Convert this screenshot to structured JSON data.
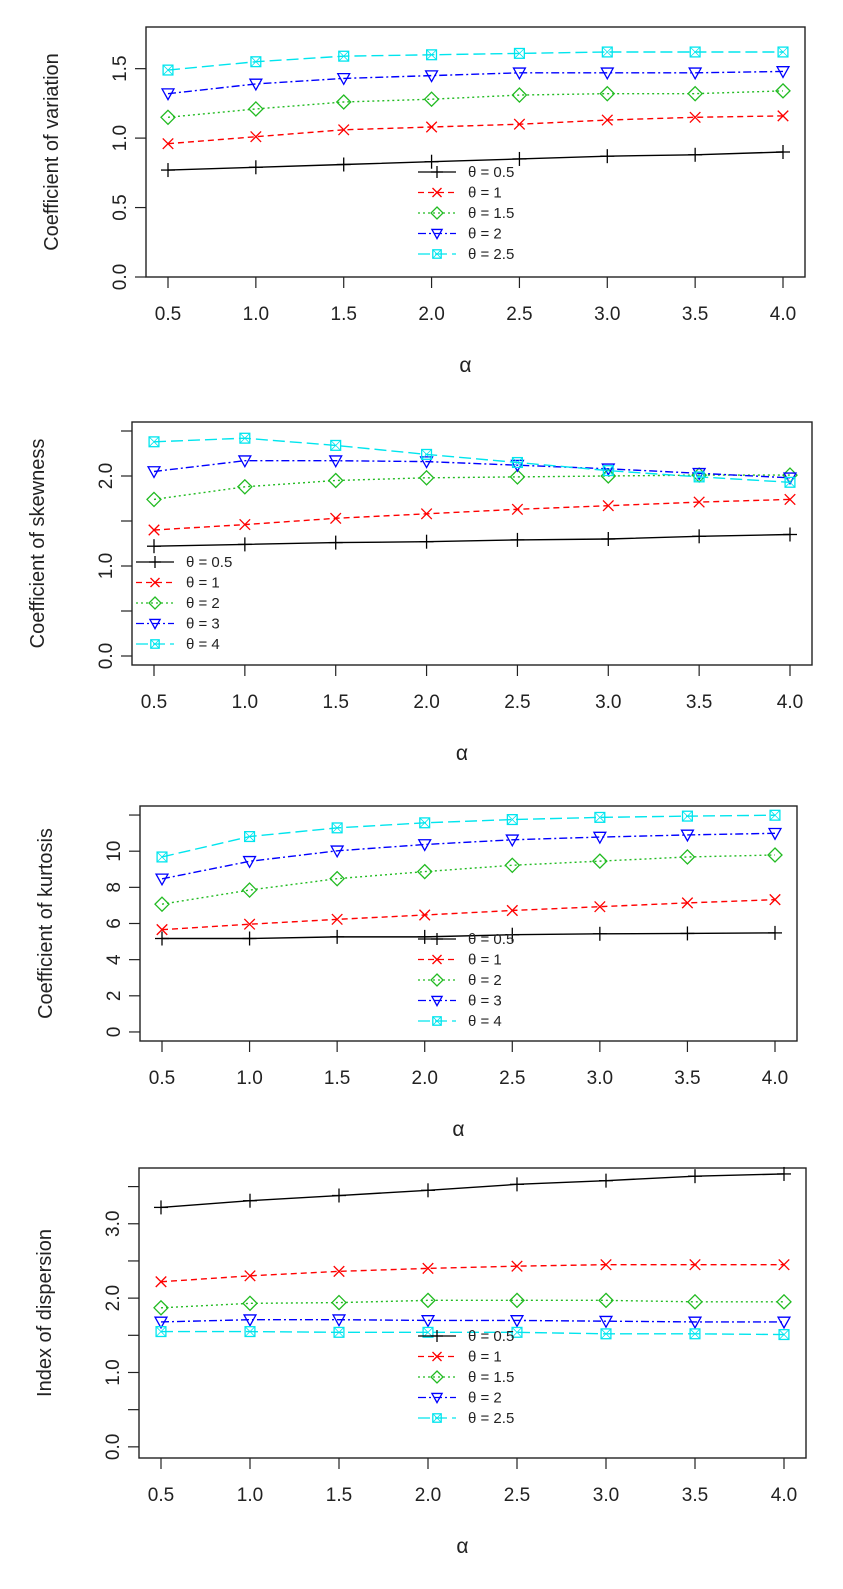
{
  "chart_data": [
    {
      "type": "line",
      "title": "",
      "xlabel": "α",
      "ylabel": "Coefficient of variation",
      "x": [
        0.5,
        1.0,
        1.5,
        2.0,
        2.5,
        3.0,
        3.5,
        4.0
      ],
      "x_tick_labels": [
        "0.5",
        "1.0",
        "1.5",
        "2.0",
        "2.5",
        "3.0",
        "3.5",
        "4.0"
      ],
      "y_ticks": [
        0.0,
        0.5,
        1.0,
        1.5
      ],
      "y_tick_labels": [
        "0.0",
        "0.5",
        "1.0",
        "1.5"
      ],
      "ylim": [
        0.0,
        1.8
      ],
      "grid": false,
      "legend_position": "bottom-center",
      "series": [
        {
          "name": "θ = 0.5",
          "color": "#000000",
          "marker": "plus",
          "dash": "solid",
          "values": [
            0.77,
            0.79,
            0.81,
            0.83,
            0.85,
            0.87,
            0.88,
            0.9
          ]
        },
        {
          "name": "θ = 1",
          "color": "#ff0000",
          "marker": "cross",
          "dash": "dashed",
          "values": [
            0.96,
            1.01,
            1.06,
            1.08,
            1.1,
            1.13,
            1.15,
            1.16
          ]
        },
        {
          "name": "θ = 1.5",
          "color": "#22bb22",
          "marker": "diamond",
          "dash": "dotted",
          "values": [
            1.15,
            1.21,
            1.26,
            1.28,
            1.31,
            1.32,
            1.32,
            1.34
          ]
        },
        {
          "name": "θ = 2",
          "color": "#0000ff",
          "marker": "triangle-down",
          "dash": "dotdash",
          "values": [
            1.32,
            1.39,
            1.43,
            1.45,
            1.47,
            1.47,
            1.47,
            1.48
          ]
        },
        {
          "name": "θ = 2.5",
          "color": "#00e5ee",
          "marker": "square-x",
          "dash": "longdash",
          "values": [
            1.49,
            1.55,
            1.59,
            1.6,
            1.61,
            1.62,
            1.62,
            1.62
          ]
        }
      ]
    },
    {
      "type": "line",
      "title": "",
      "xlabel": "α",
      "ylabel": "Coefficient of skewness",
      "x": [
        0.5,
        1.0,
        1.5,
        2.0,
        2.5,
        3.0,
        3.5,
        4.0
      ],
      "x_tick_labels": [
        "0.5",
        "1.0",
        "1.5",
        "2.0",
        "2.5",
        "3.0",
        "3.5",
        "4.0"
      ],
      "y_ticks": [
        0.0,
        0.5,
        1.0,
        1.5,
        2.0,
        2.5
      ],
      "y_tick_labels": [
        "0.0",
        "",
        "1.0",
        "",
        "2.0",
        ""
      ],
      "ylim": [
        -0.1,
        2.6
      ],
      "grid": false,
      "legend_position": "bottom-left",
      "series": [
        {
          "name": "θ = 0.5",
          "color": "#000000",
          "marker": "plus",
          "dash": "solid",
          "values": [
            1.22,
            1.24,
            1.26,
            1.27,
            1.29,
            1.3,
            1.33,
            1.35
          ]
        },
        {
          "name": "θ = 1",
          "color": "#ff0000",
          "marker": "cross",
          "dash": "dashed",
          "values": [
            1.4,
            1.46,
            1.53,
            1.58,
            1.63,
            1.67,
            1.71,
            1.74
          ]
        },
        {
          "name": "θ = 2",
          "color": "#22bb22",
          "marker": "diamond",
          "dash": "dotted",
          "values": [
            1.74,
            1.88,
            1.95,
            1.98,
            1.99,
            2.0,
            2.01,
            2.01
          ]
        },
        {
          "name": "θ = 3",
          "color": "#0000ff",
          "marker": "triangle-down",
          "dash": "dotdash",
          "values": [
            2.05,
            2.17,
            2.17,
            2.16,
            2.12,
            2.08,
            2.03,
            1.98
          ]
        },
        {
          "name": "θ = 4",
          "color": "#00e5ee",
          "marker": "square-x",
          "dash": "longdash",
          "values": [
            2.38,
            2.42,
            2.34,
            2.24,
            2.15,
            2.06,
            1.99,
            1.93
          ]
        }
      ]
    },
    {
      "type": "line",
      "title": "",
      "xlabel": "α",
      "ylabel": "Coefficient of kurtosis",
      "x": [
        0.5,
        1.0,
        1.5,
        2.0,
        2.5,
        3.0,
        3.5,
        4.0
      ],
      "x_tick_labels": [
        "0.5",
        "1.0",
        "1.5",
        "2.0",
        "2.5",
        "3.0",
        "3.5",
        "4.0"
      ],
      "y_ticks": [
        0,
        2,
        4,
        6,
        8,
        10,
        12
      ],
      "y_tick_labels": [
        "0",
        "2",
        "4",
        "6",
        "8",
        "10",
        ""
      ],
      "ylim": [
        -0.5,
        12.5
      ],
      "grid": false,
      "legend_position": "bottom-center",
      "series": [
        {
          "name": "θ = 0.5",
          "color": "#000000",
          "marker": "plus",
          "dash": "solid",
          "values": [
            5.17,
            5.17,
            5.26,
            5.26,
            5.38,
            5.43,
            5.45,
            5.48
          ]
        },
        {
          "name": "θ = 1",
          "color": "#ff0000",
          "marker": "cross",
          "dash": "dashed",
          "values": [
            5.66,
            5.96,
            6.23,
            6.47,
            6.72,
            6.93,
            7.14,
            7.32
          ]
        },
        {
          "name": "θ = 2",
          "color": "#22bb22",
          "marker": "diamond",
          "dash": "dotted",
          "values": [
            7.07,
            7.85,
            8.48,
            8.87,
            9.22,
            9.45,
            9.68,
            9.79
          ]
        },
        {
          "name": "θ = 3",
          "color": "#0000ff",
          "marker": "triangle-down",
          "dash": "dotdash",
          "values": [
            8.47,
            9.44,
            10.02,
            10.37,
            10.63,
            10.78,
            10.9,
            10.99
          ]
        },
        {
          "name": "θ = 4",
          "color": "#00e5ee",
          "marker": "square-x",
          "dash": "longdash",
          "values": [
            9.68,
            10.81,
            11.29,
            11.57,
            11.75,
            11.87,
            11.94,
            11.99
          ]
        }
      ]
    },
    {
      "type": "line",
      "title": "",
      "xlabel": "α",
      "ylabel": "Index of dispersion",
      "x": [
        0.5,
        1.0,
        1.5,
        2.0,
        2.5,
        3.0,
        3.5,
        4.0
      ],
      "x_tick_labels": [
        "0.5",
        "1.0",
        "1.5",
        "2.0",
        "2.5",
        "3.0",
        "3.5",
        "4.0"
      ],
      "y_ticks": [
        0.0,
        0.5,
        1.0,
        1.5,
        2.0,
        2.5,
        3.0,
        3.5
      ],
      "y_tick_labels": [
        "0.0",
        "",
        "1.0",
        "",
        "2.0",
        "",
        "3.0",
        ""
      ],
      "ylim": [
        -0.15,
        3.75
      ],
      "grid": false,
      "legend_position": "bottom-center",
      "series": [
        {
          "name": "θ = 0.5",
          "color": "#000000",
          "marker": "plus",
          "dash": "solid",
          "values": [
            3.22,
            3.31,
            3.38,
            3.45,
            3.53,
            3.58,
            3.64,
            3.67
          ]
        },
        {
          "name": "θ = 1",
          "color": "#ff0000",
          "marker": "cross",
          "dash": "dashed",
          "values": [
            2.22,
            2.3,
            2.36,
            2.4,
            2.43,
            2.45,
            2.45,
            2.45
          ]
        },
        {
          "name": "θ = 1.5",
          "color": "#22bb22",
          "marker": "diamond",
          "dash": "dotted",
          "values": [
            1.87,
            1.93,
            1.94,
            1.97,
            1.97,
            1.97,
            1.95,
            1.95
          ]
        },
        {
          "name": "θ = 2",
          "color": "#0000ff",
          "marker": "triangle-down",
          "dash": "dotdash",
          "values": [
            1.68,
            1.71,
            1.71,
            1.7,
            1.7,
            1.69,
            1.68,
            1.68
          ]
        },
        {
          "name": "θ = 2.5",
          "color": "#00e5ee",
          "marker": "square-x",
          "dash": "longdash",
          "values": [
            1.55,
            1.55,
            1.54,
            1.54,
            1.54,
            1.52,
            1.52,
            1.51
          ]
        }
      ]
    }
  ]
}
